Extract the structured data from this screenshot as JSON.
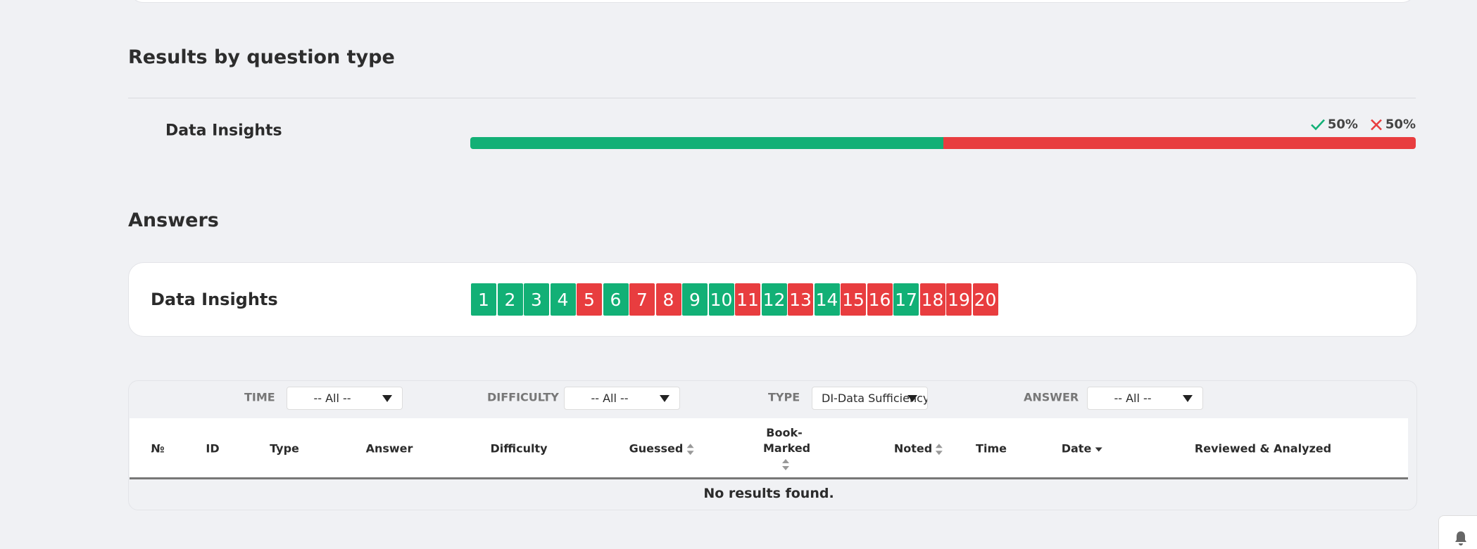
{
  "results": {
    "title": "Results by question type",
    "rows": [
      {
        "label": "Data Insights",
        "values": [
          50,
          50
        ],
        "value_labels": [
          "50%",
          "50%"
        ],
        "colors": [
          "#12b076",
          "#e83d3f"
        ]
      }
    ]
  },
  "answers": {
    "title": "Answers",
    "section": "Data Insights",
    "items": [
      {
        "label": "1",
        "color": "#12b076"
      },
      {
        "label": "2",
        "color": "#12b076"
      },
      {
        "label": "3",
        "color": "#12b076"
      },
      {
        "label": "4",
        "color": "#12b076"
      },
      {
        "label": "5",
        "color": "#e83d3f"
      },
      {
        "label": "6",
        "color": "#12b076"
      },
      {
        "label": "7",
        "color": "#e83d3f"
      },
      {
        "label": "8",
        "color": "#e83d3f"
      },
      {
        "label": "9",
        "color": "#12b076"
      },
      {
        "label": "10",
        "color": "#12b076"
      },
      {
        "label": "11",
        "color": "#e83d3f"
      },
      {
        "label": "12",
        "color": "#12b076"
      },
      {
        "label": "13",
        "color": "#e83d3f"
      },
      {
        "label": "14",
        "color": "#12b076"
      },
      {
        "label": "15",
        "color": "#e83d3f"
      },
      {
        "label": "16",
        "color": "#e83d3f"
      },
      {
        "label": "17",
        "color": "#12b076"
      },
      {
        "label": "18",
        "color": "#e83d3f"
      },
      {
        "label": "19",
        "color": "#e83d3f"
      },
      {
        "label": "20",
        "color": "#e83d3f"
      }
    ]
  },
  "filters": [
    {
      "label": "TIME",
      "selected": "-- All --"
    },
    {
      "label": "DIFFICULTY",
      "selected": "-- All --"
    },
    {
      "label": "TYPE",
      "selected": "DI-Data Sufficiency"
    },
    {
      "label": "ANSWER",
      "selected": "-- All --"
    }
  ],
  "table": {
    "columns": [
      "№",
      "ID",
      "Type",
      "Answer",
      "Difficulty",
      "Guessed",
      "Book-Marked",
      "Noted",
      "Time",
      "Date",
      "Reviewed & Analyzed"
    ],
    "empty": "No results found."
  }
}
